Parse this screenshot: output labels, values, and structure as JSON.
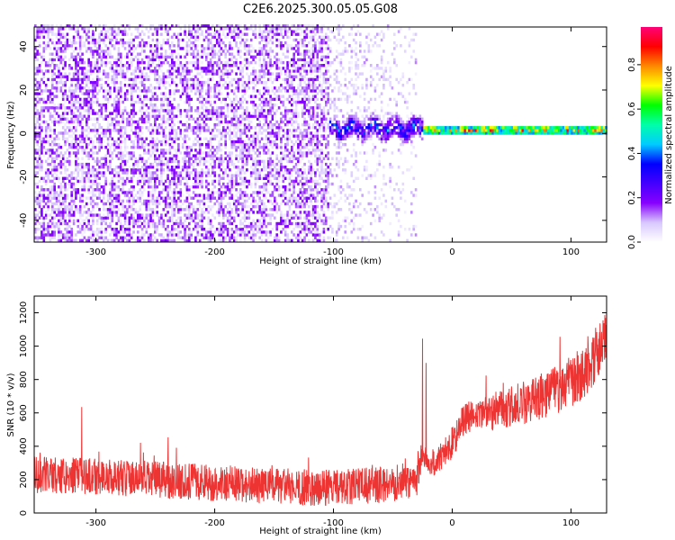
{
  "title": "C2E6.2025.300.05.05.G08",
  "colors": {
    "snr_line": "#ee3333",
    "axis": "#000000"
  },
  "chart_data": [
    {
      "type": "heatmap",
      "xlabel": "Height of straight line (km)",
      "ylabel": "Frequency (Hz)",
      "xlim": [
        -352,
        130
      ],
      "ylim": [
        -50,
        49
      ],
      "xticks": [
        -300,
        -200,
        -100,
        0,
        100
      ],
      "yticks": [
        -40,
        -20,
        0,
        20,
        40
      ],
      "grid": false,
      "colorbar": {
        "label": "Normalized spectral amplitude",
        "range": [
          0,
          0.97
        ],
        "ticks": [
          "0.0",
          "0.2",
          "0.4",
          "0.6",
          "0.8"
        ],
        "tick_values": [
          0,
          0.2,
          0.4,
          0.6,
          0.8
        ],
        "colormap": [
          "#ffffff",
          "#d8c8ff",
          "#8800ff",
          "#4400ff",
          "#0000ff",
          "#00ccff",
          "#00ffaa",
          "#00ff00",
          "#ffff00",
          "#ff8800",
          "#ff0000",
          "#ff0077"
        ]
      },
      "regions": [
        {
          "name": "noise",
          "x": [
            -352,
            -105
          ],
          "density": 0.55,
          "amplitude": [
            0.02,
            0.2
          ]
        },
        {
          "name": "fading-noise",
          "x": [
            -105,
            -30
          ],
          "density": 0.28,
          "amplitude": [
            0.02,
            0.12
          ]
        },
        {
          "name": "onset",
          "x": [
            -105,
            -25
          ],
          "freq_center": 1.5,
          "freq_spread": 5,
          "amplitude": [
            0.1,
            0.5
          ]
        },
        {
          "name": "signal",
          "x": [
            -25,
            130
          ],
          "freq_center": 1,
          "freq_spread": 1.5,
          "amplitude": [
            0.4,
            0.97
          ]
        }
      ]
    },
    {
      "type": "line",
      "xlabel": "Height of straight line (km)",
      "ylabel": "SNR (10 * v/v)",
      "xlim": [
        -352,
        130
      ],
      "ylim": [
        0,
        1300
      ],
      "xticks": [
        -300,
        -200,
        -100,
        0,
        100
      ],
      "yticks": [
        0,
        200,
        400,
        600,
        800,
        1000,
        1200
      ],
      "grid": false,
      "series": [
        {
          "trend_x": [
            -352,
            -300,
            -250,
            -200,
            -150,
            -100,
            -60,
            -30,
            -25,
            -20,
            -10,
            0,
            10,
            30,
            60,
            90,
            110,
            130
          ],
          "trend_y": [
            230,
            220,
            200,
            180,
            160,
            150,
            170,
            200,
            380,
            280,
            330,
            420,
            560,
            600,
            660,
            740,
            840,
            1040
          ],
          "noise_amplitude": [
            110,
            80
          ],
          "spikes": [
            {
              "x": -25,
              "y": 1045
            },
            {
              "x": -22,
              "y": 900
            },
            {
              "x": -312,
              "y": 635
            }
          ]
        }
      ]
    }
  ]
}
